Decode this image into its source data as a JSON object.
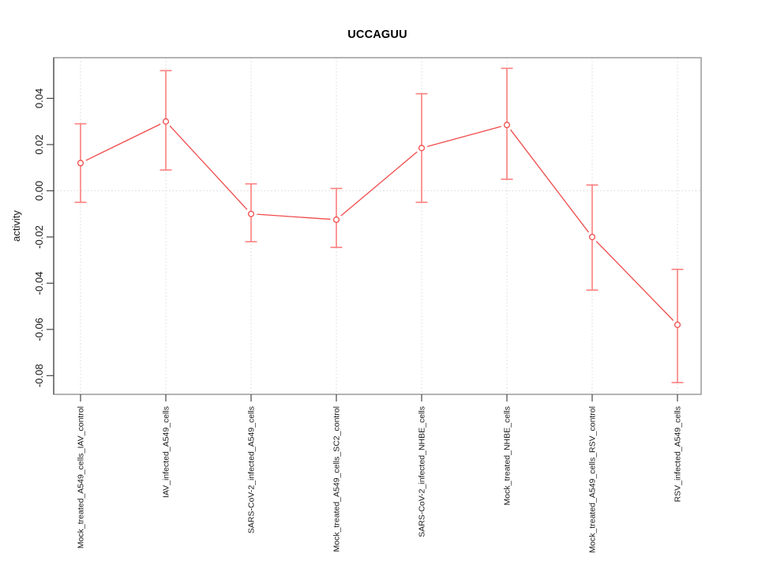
{
  "chart_data": {
    "type": "line",
    "title": "UCCAGUU",
    "xlabel": "",
    "ylabel": "activity",
    "legend_position": "none",
    "grid": {
      "vertical_gridlines_dotted": true,
      "zero_line_dotted": true,
      "horizontal_gridlines": false
    },
    "categories": [
      "Mock_treated_A549_cells_IAV_control",
      "IAV_infected_A549_cells",
      "SARS-CoV-2_infected_A549_cells",
      "Mock_treated_A549_cells_SC2_control",
      "SARS-CoV-2_infected_NHBE_cells",
      "Mock_treated_NHBE_cells",
      "Mock_treated_A549_cells_RSV_control",
      "RSV_infected_A549_cells"
    ],
    "series": [
      {
        "name": "UCCAGUU",
        "marker": "open-circle",
        "values": [
          0.012,
          0.03,
          -0.01,
          -0.0125,
          0.0185,
          0.0285,
          -0.02,
          -0.058
        ],
        "error_low": [
          -0.005,
          0.009,
          -0.022,
          -0.0245,
          -0.005,
          0.005,
          -0.043,
          -0.083
        ],
        "error_high": [
          0.029,
          0.052,
          0.003,
          0.001,
          0.042,
          0.053,
          0.0025,
          -0.034
        ]
      }
    ],
    "ytick_values": [
      0.04,
      0.02,
      0,
      -0.02,
      -0.04,
      -0.06,
      -0.08
    ],
    "ytick_labels": [
      "0.04",
      "0.02",
      "0.00",
      "-0.02",
      "-0.04",
      "-0.06",
      "-0.08"
    ],
    "ylim": [
      -0.0881,
      0.0576
    ],
    "colors": {
      "line": "#f04b4b",
      "marker": "#f04b4b",
      "marker_fill": "#ffffff",
      "error_bar": "#fc7f7f",
      "gridline": "#d8d8d8",
      "frame": "#949494",
      "axis": "#454545",
      "text": "#1a1a1a",
      "background": "#ffffff"
    }
  }
}
